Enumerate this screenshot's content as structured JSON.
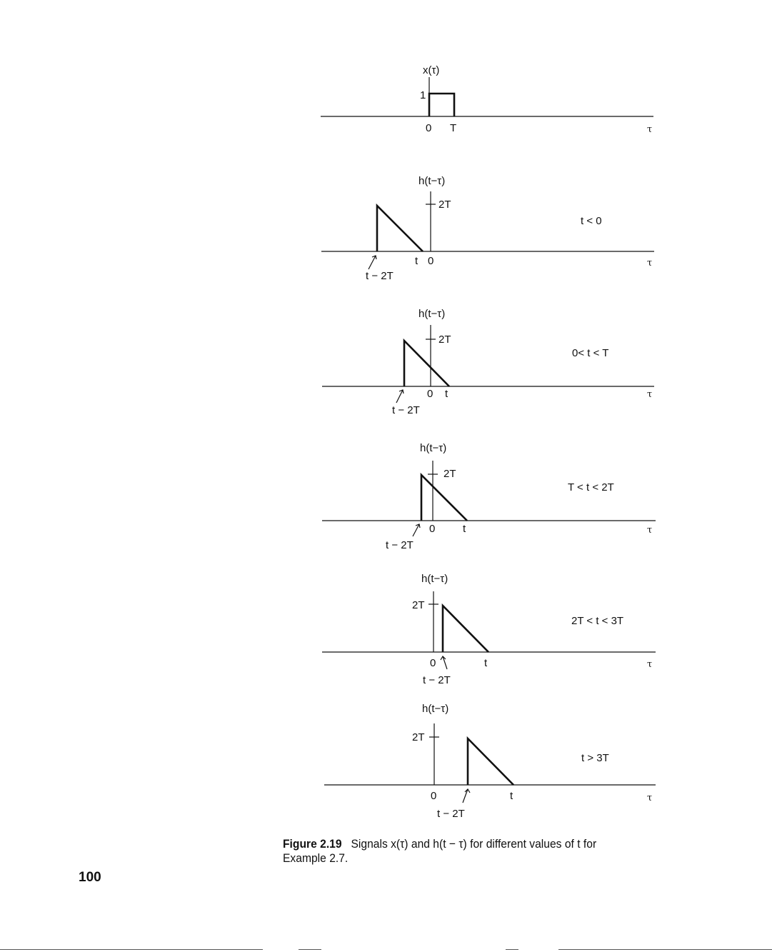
{
  "figure": {
    "panel1": {
      "ylabel": "x(τ)",
      "one": "1",
      "zero": "0",
      "T": "T",
      "tau": "τ"
    },
    "panel2": {
      "ylabel": "h(t−τ)",
      "twoT": "2T",
      "t": "t",
      "zero": "0",
      "tminus": "t − 2T",
      "cond": "t < 0",
      "tau": "τ"
    },
    "panel3": {
      "ylabel": "h(t−τ)",
      "twoT": "2T",
      "zero": "0",
      "t": "t",
      "tminus": "t − 2T",
      "cond": "0< t < T",
      "tau": "τ"
    },
    "panel4": {
      "ylabel": "h(t−τ)",
      "twoT": "2T",
      "zero": "0",
      "t": "t",
      "tminus": "t − 2T",
      "cond": "T < t < 2T",
      "tau": "τ"
    },
    "panel5": {
      "ylabel": "h(t−τ)",
      "twoT": "2T",
      "zero": "0",
      "t": "t",
      "tminus": "t − 2T",
      "cond": "2T < t < 3T",
      "tau": "τ"
    },
    "panel6": {
      "ylabel": "h(t−τ)",
      "twoT": "2T",
      "zero": "0",
      "t": "t",
      "tminus": "t − 2T",
      "cond": "t > 3T",
      "tau": "τ"
    }
  },
  "caption": {
    "label": "Figure 2.19",
    "text": "Signals x(τ) and h(t − τ) for different values of t for Example 2.7."
  },
  "page_number": "100"
}
